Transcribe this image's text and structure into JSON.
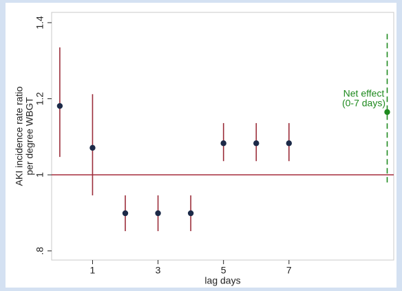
{
  "chart_data": {
    "type": "scatter",
    "x_label": "lag days",
    "y_label": [
      "AKI incidence rate ratio",
      "per degree WBGT"
    ],
    "xlim": [
      -0.25,
      10.2
    ],
    "ylim": [
      0.776,
      1.427
    ],
    "xticks": [
      1,
      3,
      5,
      7
    ],
    "yticks": [
      {
        "value": 0.8,
        "label": ".8"
      },
      1,
      1.2,
      1.4
    ],
    "grid": false,
    "reference_line": {
      "value": 1,
      "color": "#a52a3a"
    },
    "series": [
      {
        "x": [
          0,
          1,
          2,
          3,
          4,
          5,
          6,
          7
        ],
        "values": [
          1.181,
          1.071,
          0.899,
          0.899,
          0.899,
          1.083,
          1.083,
          1.083
        ],
        "lower": [
          1.047,
          0.946,
          0.852,
          0.852,
          0.852,
          1.036,
          1.036,
          1.036
        ],
        "upper": [
          1.335,
          1.212,
          0.946,
          0.946,
          0.946,
          1.136,
          1.136,
          1.136
        ],
        "color": "#1c2a48",
        "ci_color": "#9b2d3a",
        "ci_style": "solid"
      },
      {
        "x": [
          10
        ],
        "values": [
          1.165
        ],
        "lower": [
          0.98
        ],
        "upper": [
          1.376
        ],
        "color": "#1e8a1e",
        "ci_color": "#1e8a1e",
        "ci_style": "dashed",
        "label_lines": [
          "Net effect",
          "(0-7 days)"
        ]
      }
    ]
  }
}
